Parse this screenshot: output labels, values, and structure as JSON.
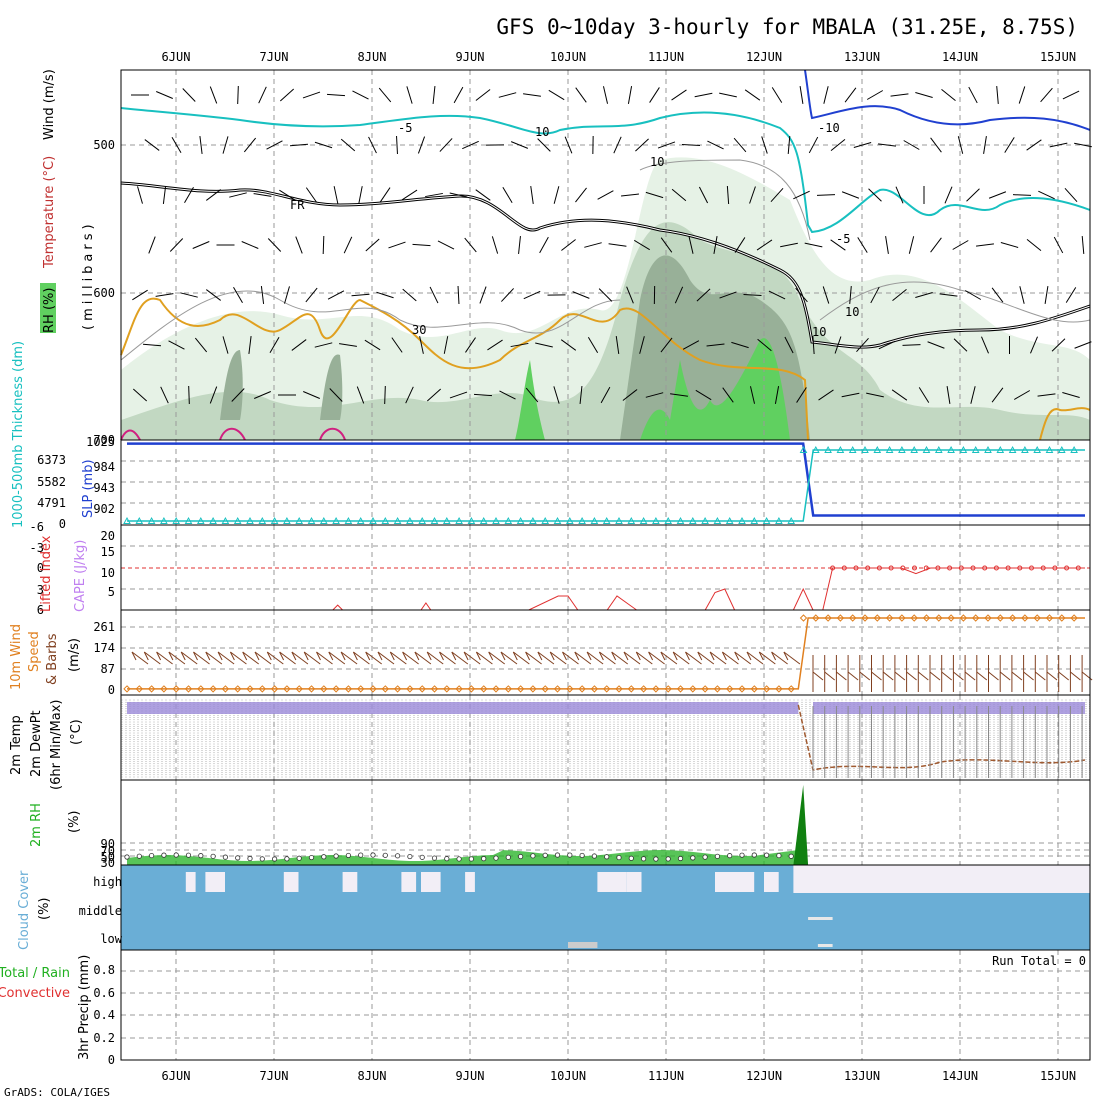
{
  "title": "GFS 0~10day 3-hourly for MBALA (31.25E, 8.75S)",
  "footer": "GrADS: COLA/IGES",
  "days": [
    "6JUN",
    "7JUN",
    "8JUN",
    "9JUN",
    "10JUN",
    "11JUN",
    "12JUN",
    "13JUN",
    "14JUN",
    "15JUN"
  ],
  "colors": {
    "temp_cyan": "#18c0c0",
    "temp_blue": "#2040d0",
    "frz": "#000000",
    "rh_light": "#e6f2e6",
    "rh_mid": "#c2d8c2",
    "rh_dark": "#98b098",
    "rh_green": "#60d060",
    "orange": "#e0a020",
    "slp": "#2040d0",
    "thick": "#18c0c0",
    "cape": "#c080f0",
    "li": "#e03030",
    "wind": "#e08020",
    "barb": "#804020",
    "rh2m": "#20b020",
    "cloud": "#6aaed6",
    "cloud_light": "#f2eef6"
  },
  "panels": {
    "upper": {
      "ylabel_rh": "RH (%)",
      "ylabel_mb": "(millibars)",
      "ylabel_temp": "Temperature (°C)",
      "ylabel_wind": "Wind (m/s)",
      "yticks": [
        "500",
        "600",
        "700"
      ],
      "contour_labels": [
        "-5",
        "-10",
        "-5",
        "FR",
        "10",
        "30",
        "10",
        "10",
        "10"
      ]
    },
    "slp": {
      "ylabel_slp": "SLP (mb)",
      "ylabel_thick": "1000-500mb Thickness (dm)",
      "yticks_right": [
        "1025",
        "984",
        "943",
        "902"
      ],
      "yticks_left": [
        "6373",
        "5582",
        "4791",
        "0"
      ],
      "slp_before": 1022,
      "slp_after": 892,
      "thick_before": 0,
      "thick_after": 6373
    },
    "cape": {
      "ylabel_li": "Lifted Index",
      "ylabel_cape": "CAPE (J/kg)",
      "yticks_right": [
        "20",
        "15",
        "10",
        "5"
      ],
      "yticks_left": [
        "-6",
        "-3",
        "0",
        "3",
        "6"
      ],
      "cape_bars": [
        [
          9.6,
          3.5
        ],
        [
          10.5,
          5.5
        ],
        [
          10.6,
          3.5
        ],
        [
          11.6,
          5.5
        ],
        [
          12.5,
          6
        ],
        [
          12.6,
          21
        ]
      ],
      "li_before": 6,
      "li_after": 0
    },
    "wind": {
      "ylabel_1": "10m Wind",
      "ylabel_2": "Speed",
      "ylabel_3": "& Barbs",
      "unit": "(m/s)",
      "yticks": [
        "261",
        "174",
        "87",
        "0"
      ],
      "speed_before": 4,
      "speed_after": 261
    },
    "temp": {
      "ylabel_1": "2m Temp",
      "ylabel_2": "2m DewPt",
      "ylabel_3": "(6hr Min/Max)",
      "unit": "(°C)"
    },
    "rh2m": {
      "ylabel": "2m RH",
      "unit": "(%)",
      "yticks": [
        "90",
        "70",
        "50",
        "30"
      ]
    },
    "cloud": {
      "ylabel": "Cloud Cover",
      "unit": "(%)",
      "levels": [
        "high",
        "middle",
        "low"
      ]
    },
    "precip": {
      "ylabel_a": "Total / Rain",
      "ylabel_b": "Convective",
      "ylabel_c": "3hr Precip (mm)",
      "yticks": [
        "0.8",
        "0.6",
        "0.4",
        "0.2",
        "0"
      ],
      "run_total": "Run Total = 0"
    }
  },
  "chart_data": {
    "type": "line",
    "title": "GFS 0~10day 3-hourly for MBALA (31.25E, 8.75S)",
    "x": [
      "6JUN",
      "7JUN",
      "8JUN",
      "9JUN",
      "10JUN",
      "11JUN",
      "12JUN",
      "13JUN",
      "14JUN",
      "15JUN"
    ],
    "series": [
      {
        "name": "SLP (mb)",
        "values": [
          1022,
          1022,
          1022,
          1022,
          1022,
          1022,
          1022,
          892,
          892,
          892
        ]
      },
      {
        "name": "1000-500mb Thickness (dm)",
        "values": [
          0,
          0,
          0,
          0,
          0,
          0,
          0,
          6373,
          6373,
          6373
        ]
      },
      {
        "name": "10m Wind Speed (m/s)",
        "values": [
          4,
          4,
          4,
          4,
          4,
          4,
          4,
          261,
          261,
          261
        ]
      },
      {
        "name": "Lifted Index",
        "values": [
          6,
          6,
          6,
          6,
          5,
          5,
          6,
          0,
          0,
          0
        ]
      },
      {
        "name": "3hr Precip (mm)",
        "values": [
          0,
          0,
          0,
          0,
          0,
          0,
          0,
          0,
          0,
          0
        ]
      }
    ]
  }
}
